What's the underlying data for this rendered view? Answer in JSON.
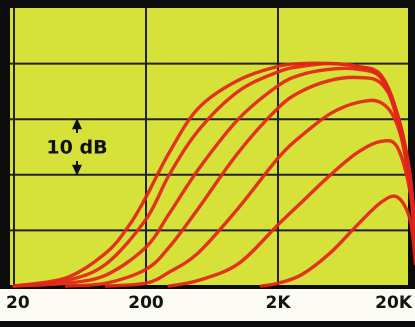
{
  "chart_data": {
    "type": "line",
    "title": "",
    "xlabel": "",
    "ylabel": "",
    "x_scale": "log",
    "x_ticks": [
      "20",
      "200",
      "2K",
      "20K"
    ],
    "x_tick_values": [
      20,
      200,
      2000,
      20000
    ],
    "y_unit": "dB",
    "ylim": [
      -40,
      10
    ],
    "grid": true,
    "annotation": {
      "text": "10 dB",
      "span_db": 10,
      "from_db": -20,
      "to_db": -10
    },
    "note": "",
    "series": [
      {
        "x": [
          20,
          50,
          100,
          150,
          200,
          300,
          500,
          1000,
          2000,
          3000,
          5000,
          8000,
          12000,
          16000,
          20000,
          22000
        ],
        "y": [
          -40,
          -38.5,
          -34,
          -29,
          -24,
          -16,
          -8,
          -3,
          -0.5,
          0,
          0,
          -0.5,
          -2.5,
          -10,
          -22,
          -32
        ]
      },
      {
        "x": [
          20,
          50,
          100,
          200,
          300,
          500,
          1000,
          2000,
          3000,
          5000,
          8000,
          12000,
          16000,
          20000,
          22000
        ],
        "y": [
          -40,
          -39,
          -36,
          -28,
          -20,
          -12,
          -5,
          -1.5,
          -0.5,
          0,
          -0.5,
          -2,
          -9,
          -21,
          -32
        ]
      },
      {
        "x": [
          20,
          50,
          100,
          200,
          300,
          500,
          1000,
          2000,
          3000,
          5000,
          8000,
          12000,
          16000,
          20000,
          22000
        ],
        "y": [
          -40,
          -39.5,
          -38,
          -33,
          -27,
          -19,
          -10,
          -4,
          -2,
          -1,
          -1,
          -2.5,
          -9,
          -20,
          -32
        ]
      },
      {
        "x": [
          50,
          100,
          200,
          300,
          500,
          1000,
          2000,
          3000,
          5000,
          8000,
          12000,
          16000,
          20000,
          22000
        ],
        "y": [
          -40,
          -39.5,
          -37,
          -33,
          -26,
          -16,
          -8,
          -5,
          -3,
          -2.5,
          -3.5,
          -9,
          -20,
          -32
        ]
      },
      {
        "x": [
          100,
          200,
          300,
          500,
          1000,
          2000,
          3000,
          5000,
          8000,
          12000,
          16000,
          20000,
          22000
        ],
        "y": [
          -40,
          -39.5,
          -37.5,
          -34,
          -26,
          -17,
          -13,
          -9,
          -7,
          -7,
          -11,
          -21,
          -32
        ]
      },
      {
        "x": [
          300,
          500,
          1000,
          2000,
          3000,
          5000,
          8000,
          12000,
          16000,
          20000,
          22000
        ],
        "y": [
          -40,
          -39,
          -36,
          -29,
          -25,
          -20,
          -16,
          -14,
          -15,
          -23,
          -33
        ]
      },
      {
        "x": [
          1500,
          2000,
          3000,
          5000,
          8000,
          12000,
          16000,
          20000,
          22000
        ],
        "y": [
          -40,
          -39.5,
          -38,
          -34,
          -29,
          -25,
          -24,
          -28,
          -36
        ]
      }
    ]
  }
}
